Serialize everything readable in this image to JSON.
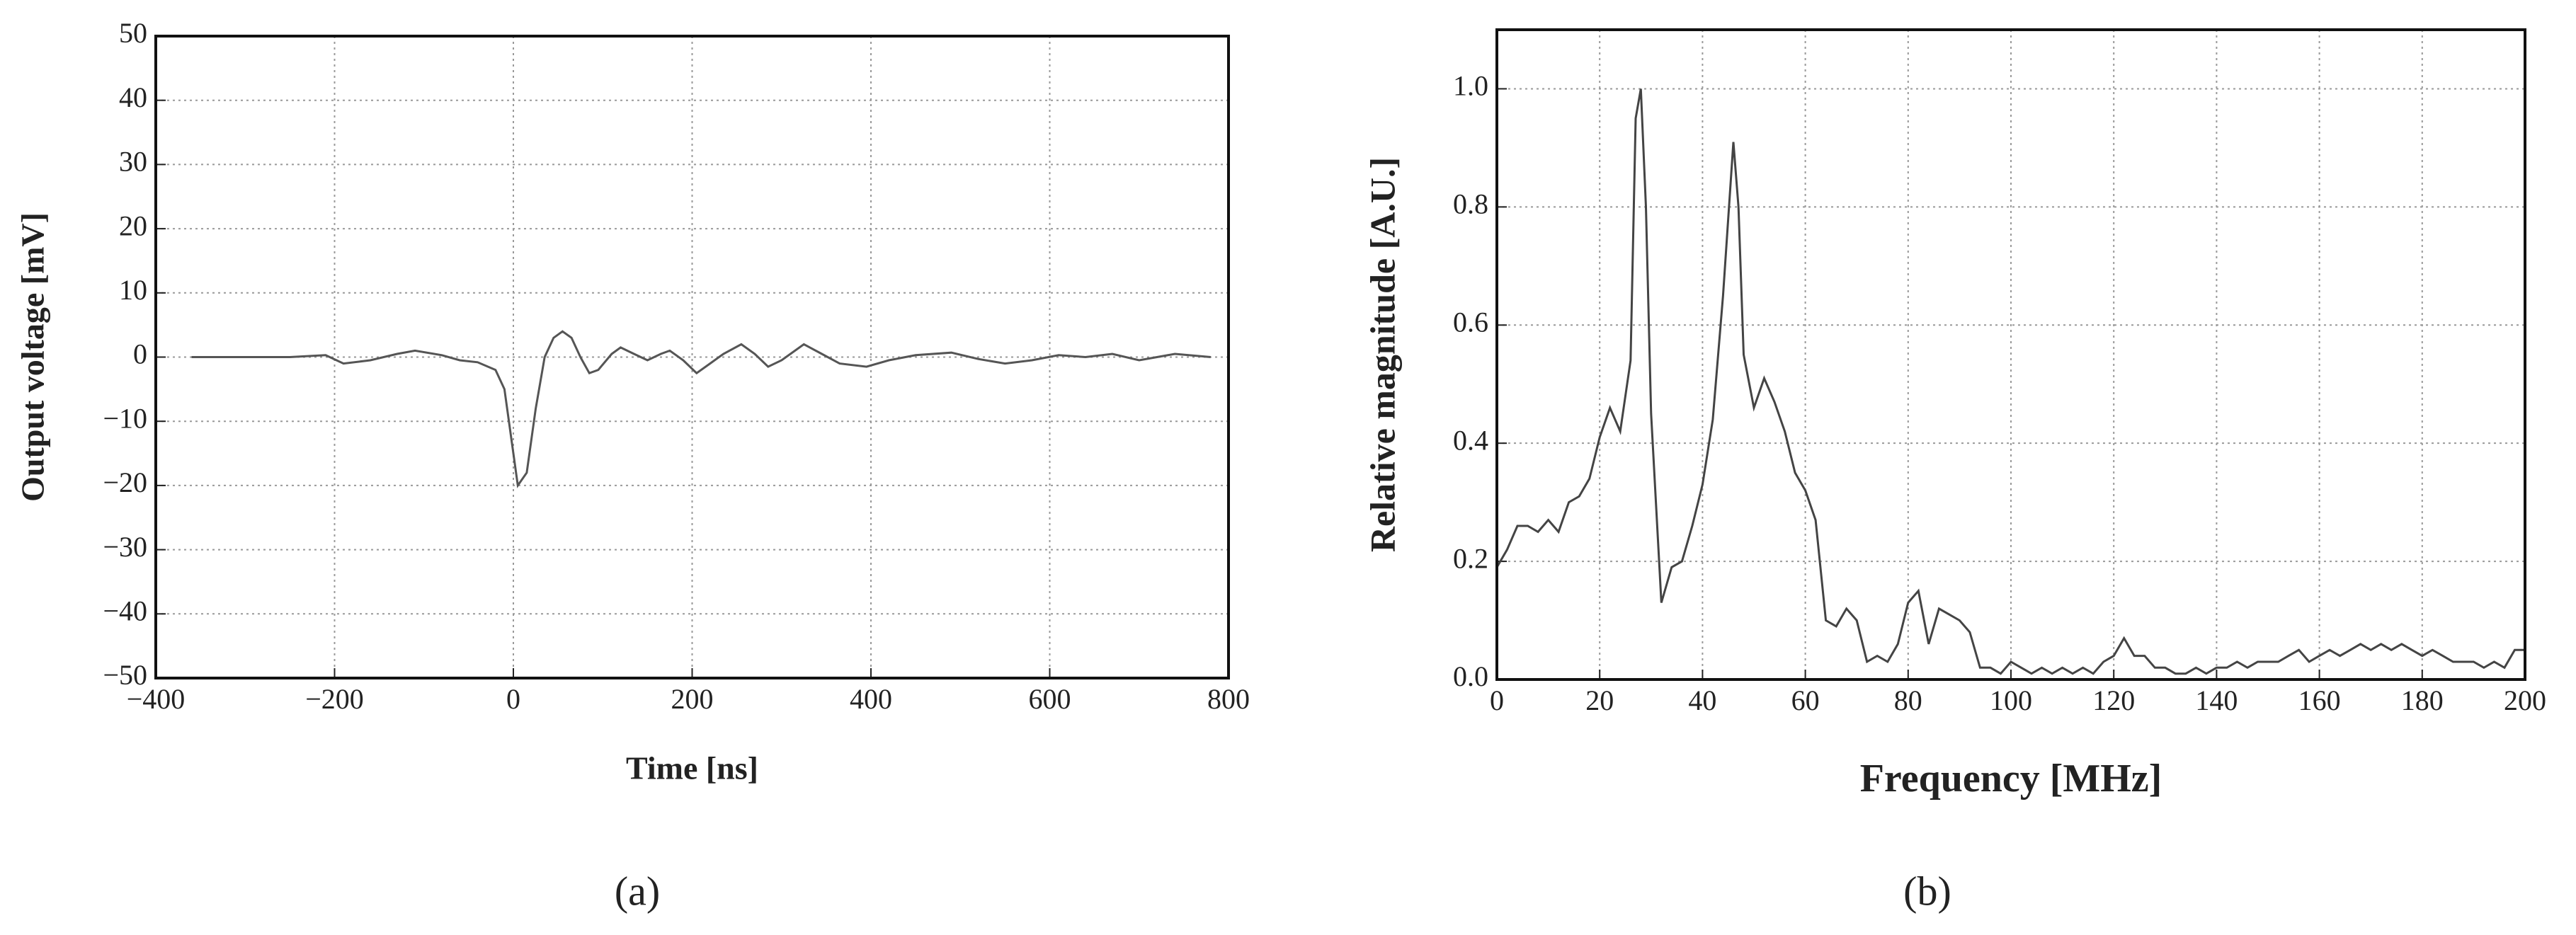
{
  "chart_data": [
    {
      "type": "line",
      "caption": "(a)",
      "xlabel": "Time [ns]",
      "ylabel": "Output voltage [mV]",
      "color": "#555555",
      "grid": true,
      "xlim": [
        -400,
        800
      ],
      "xticks": [
        {
          "value": -400,
          "label": "−400"
        },
        {
          "value": -200,
          "label": "−200"
        },
        0,
        200,
        400,
        600,
        800
      ],
      "ylim": [
        -50,
        50
      ],
      "yticks": [
        {
          "value": -50,
          "label": "−50"
        },
        {
          "value": -40,
          "label": "−40"
        },
        {
          "value": -30,
          "label": "−30"
        },
        {
          "value": -20,
          "label": "−20"
        },
        {
          "value": -10,
          "label": "−10"
        },
        0,
        10,
        20,
        30,
        40,
        50
      ],
      "x": [
        -360,
        -300,
        -250,
        -210,
        -190,
        -160,
        -130,
        -110,
        -80,
        -60,
        -40,
        -20,
        -10,
        0,
        5,
        15,
        25,
        35,
        45,
        55,
        65,
        75,
        85,
        95,
        110,
        120,
        135,
        150,
        165,
        175,
        190,
        205,
        220,
        235,
        255,
        270,
        285,
        300,
        325,
        345,
        365,
        395,
        420,
        450,
        490,
        520,
        550,
        580,
        610,
        640,
        670,
        700,
        740,
        780
      ],
      "values": [
        0,
        0,
        0,
        0.3,
        -1,
        -0.5,
        0.5,
        1,
        0.3,
        -0.5,
        -0.8,
        -2,
        -5,
        -15,
        -20,
        -18,
        -8,
        0,
        3,
        4,
        3,
        0,
        -2.5,
        -2,
        0.5,
        1.5,
        0.5,
        -0.5,
        0.5,
        1,
        -0.5,
        -2.5,
        -1,
        0.5,
        2,
        0.5,
        -1.5,
        -0.5,
        2,
        0.5,
        -1,
        -1.5,
        -0.5,
        0.3,
        0.7,
        -0.3,
        -1,
        -0.5,
        0.3,
        0,
        0.5,
        -0.5,
        0.5,
        0
      ]
    },
    {
      "type": "line",
      "caption": "(b)",
      "xlabel": "Frequency [MHz]",
      "ylabel": "Relative magnitude [A.U.]",
      "color": "#444444",
      "grid": true,
      "xlim": [
        0,
        200
      ],
      "xticks": [
        0,
        20,
        40,
        60,
        80,
        100,
        120,
        140,
        160,
        180,
        200
      ],
      "ylim": [
        0,
        1.1
      ],
      "yticks": [
        {
          "value": 0,
          "label": "0.0"
        },
        0.2,
        0.4,
        0.6,
        0.8,
        {
          "value": 1,
          "label": "1.0"
        }
      ],
      "x": [
        0,
        2,
        4,
        6,
        8,
        10,
        12,
        14,
        16,
        18,
        20,
        22,
        24,
        26,
        27,
        28,
        29,
        30,
        32,
        34,
        36,
        38,
        40,
        42,
        44,
        46,
        47,
        48,
        50,
        52,
        54,
        56,
        58,
        60,
        62,
        64,
        66,
        68,
        70,
        72,
        74,
        76,
        78,
        80,
        82,
        84,
        86,
        88,
        90,
        92,
        94,
        96,
        98,
        100,
        102,
        104,
        106,
        108,
        110,
        112,
        114,
        116,
        118,
        120,
        122,
        124,
        126,
        128,
        130,
        132,
        134,
        136,
        138,
        140,
        142,
        144,
        146,
        148,
        150,
        152,
        154,
        156,
        158,
        160,
        162,
        164,
        166,
        168,
        170,
        172,
        174,
        176,
        178,
        180,
        182,
        184,
        186,
        188,
        190,
        192,
        194,
        196,
        198,
        200
      ],
      "values": [
        0.19,
        0.22,
        0.26,
        0.26,
        0.25,
        0.27,
        0.25,
        0.3,
        0.31,
        0.34,
        0.41,
        0.46,
        0.42,
        0.54,
        0.95,
        1.0,
        0.8,
        0.45,
        0.13,
        0.19,
        0.2,
        0.26,
        0.33,
        0.44,
        0.65,
        0.91,
        0.8,
        0.55,
        0.46,
        0.51,
        0.47,
        0.42,
        0.35,
        0.32,
        0.27,
        0.1,
        0.09,
        0.12,
        0.1,
        0.03,
        0.04,
        0.03,
        0.06,
        0.13,
        0.15,
        0.06,
        0.12,
        0.11,
        0.1,
        0.08,
        0.02,
        0.02,
        0.01,
        0.03,
        0.02,
        0.01,
        0.02,
        0.01,
        0.02,
        0.01,
        0.02,
        0.01,
        0.03,
        0.04,
        0.07,
        0.04,
        0.04,
        0.02,
        0.02,
        0.01,
        0.01,
        0.02,
        0.01,
        0.02,
        0.02,
        0.03,
        0.02,
        0.03,
        0.03,
        0.03,
        0.04,
        0.05,
        0.03,
        0.04,
        0.05,
        0.04,
        0.05,
        0.06,
        0.05,
        0.06,
        0.05,
        0.06,
        0.05,
        0.04,
        0.05,
        0.04,
        0.03,
        0.03,
        0.03,
        0.02,
        0.03,
        0.02,
        0.05,
        0.05
      ]
    }
  ]
}
